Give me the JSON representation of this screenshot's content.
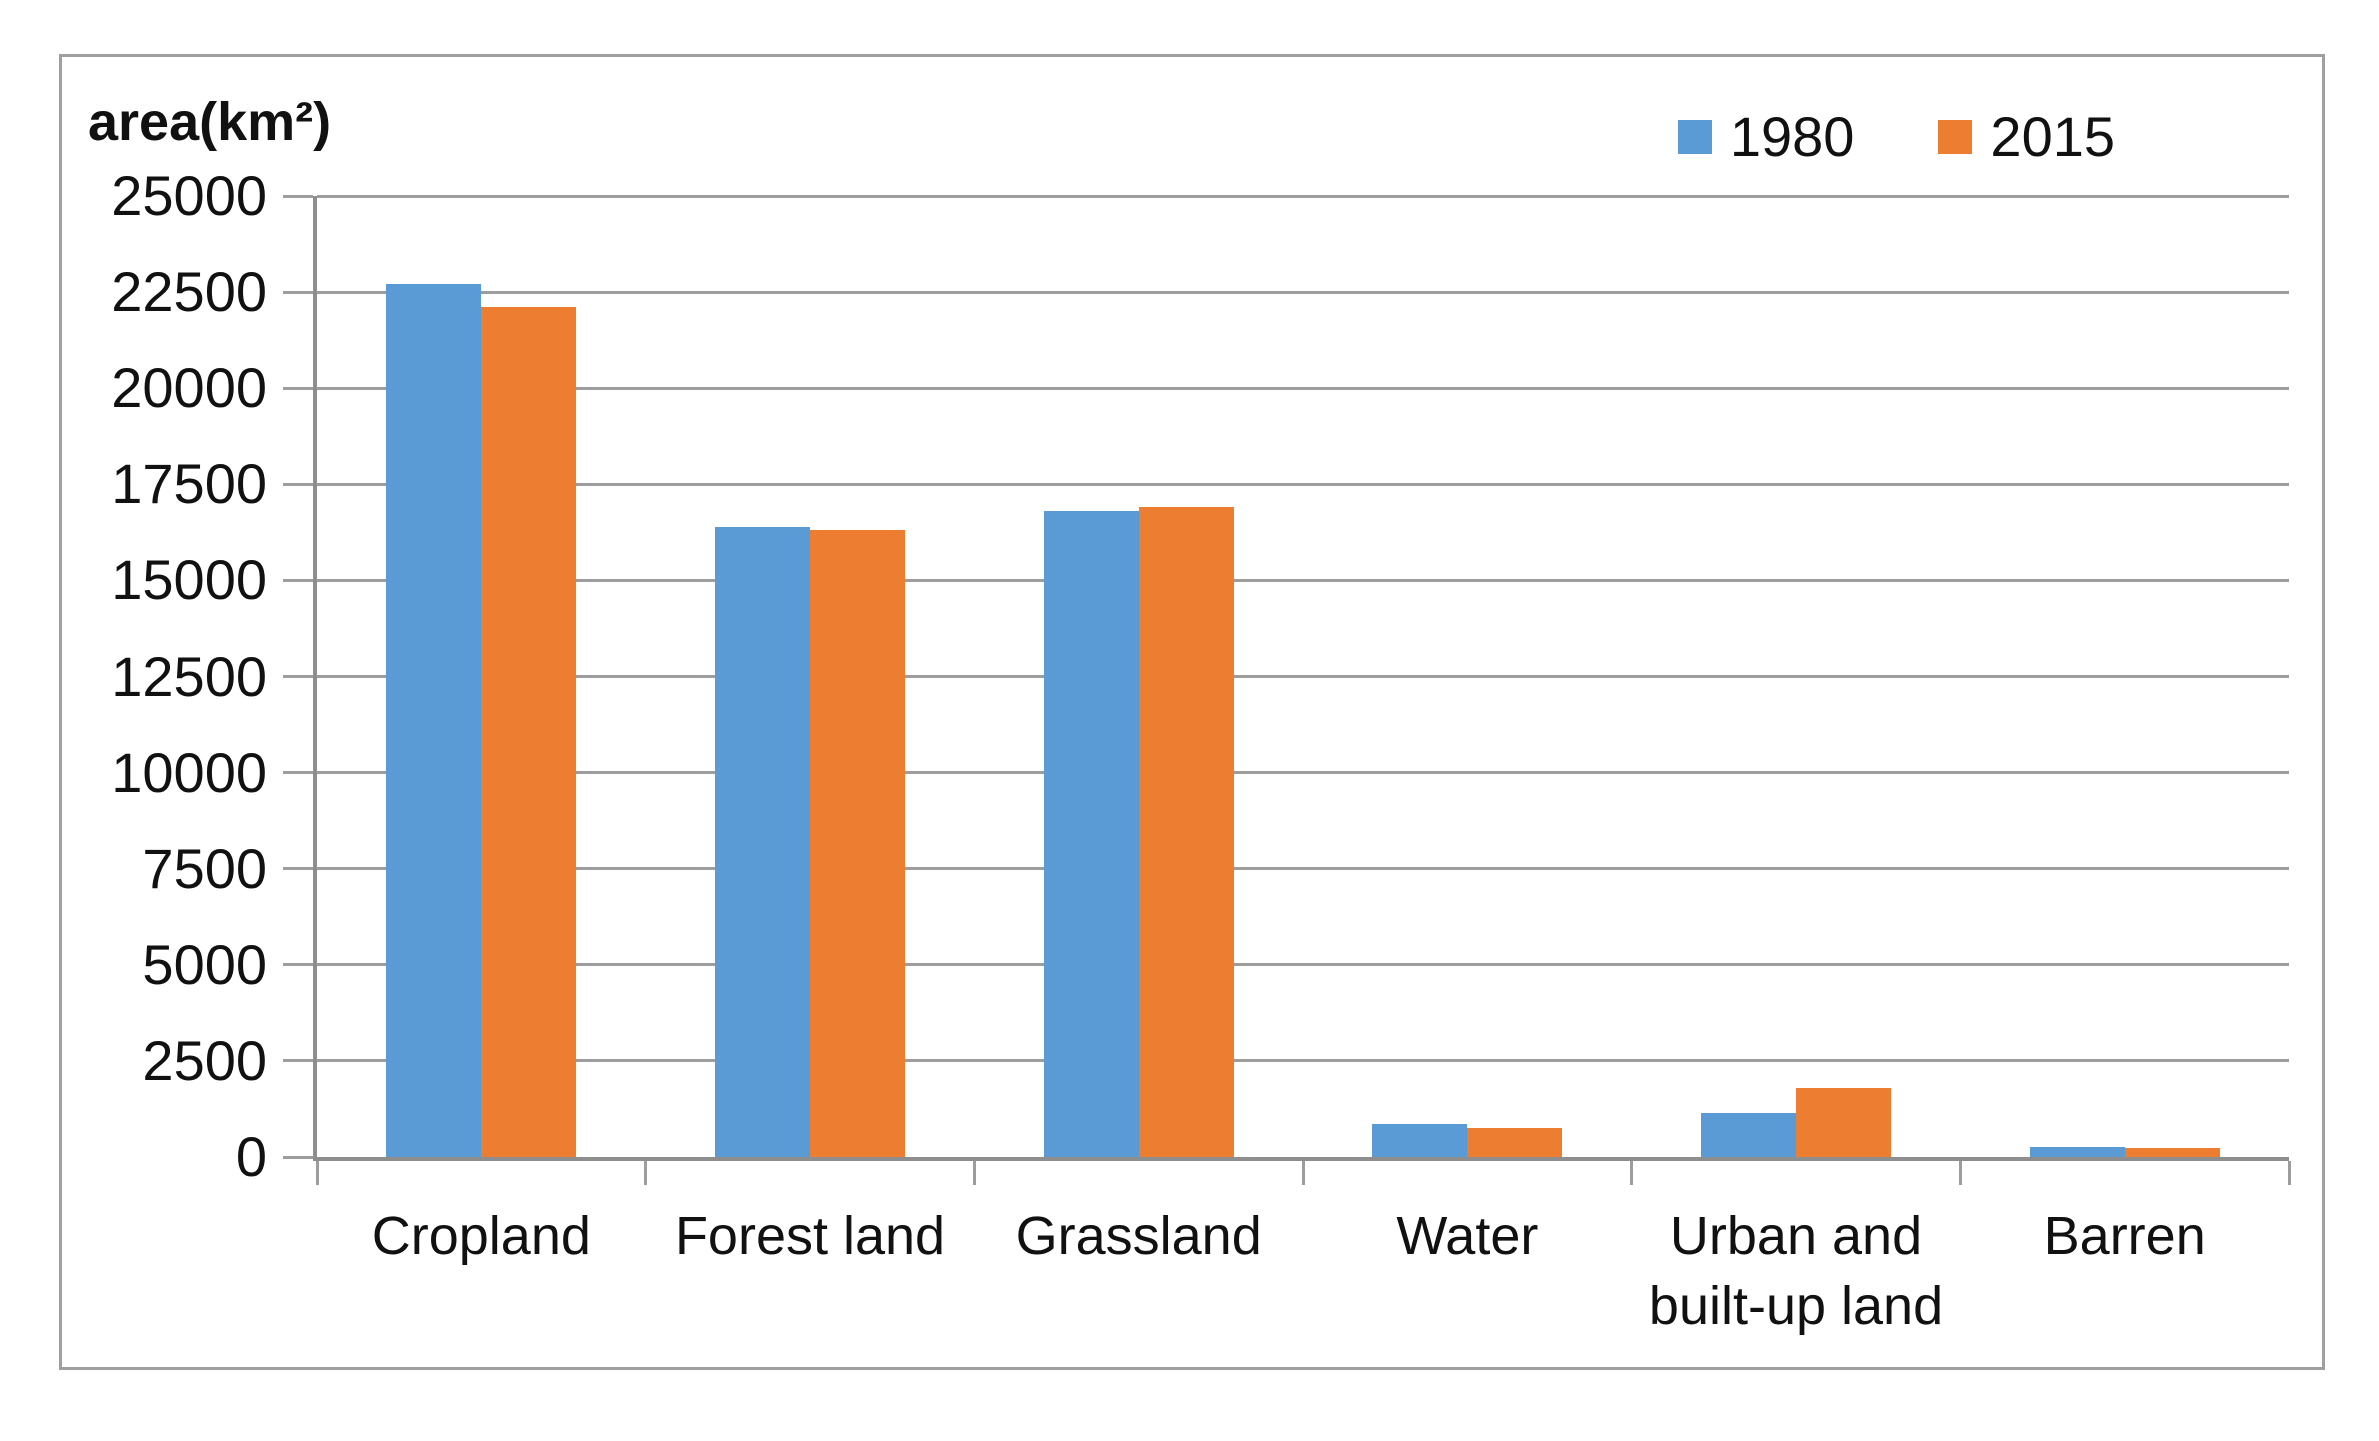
{
  "chart_data": {
    "type": "bar",
    "title": "area(km²)",
    "ylabel": "area(km²)",
    "xlabel": "",
    "categories": [
      "Cropland",
      "Forest land",
      "Grassland",
      "Water",
      "Urban and built-up land",
      "Barren"
    ],
    "series": [
      {
        "name": "1980",
        "color": "#5B9BD5",
        "values": [
          22700,
          16400,
          16800,
          850,
          1150,
          250
        ]
      },
      {
        "name": "2015",
        "color": "#ED7D31",
        "values": [
          22100,
          16300,
          16900,
          750,
          1800,
          230
        ]
      }
    ],
    "ylim": [
      0,
      25000
    ],
    "ytick_step": 2500,
    "yticks": [
      0,
      2500,
      5000,
      7500,
      10000,
      12500,
      15000,
      17500,
      20000,
      22500,
      25000
    ],
    "grid": true,
    "legend_position": "top-right"
  },
  "style": {
    "grid_color": "#9d9d9d",
    "axis_color": "#8e8e8e",
    "border_color": "#a0a0a0",
    "text_color": "#111111",
    "background_color": "#ffffff"
  }
}
